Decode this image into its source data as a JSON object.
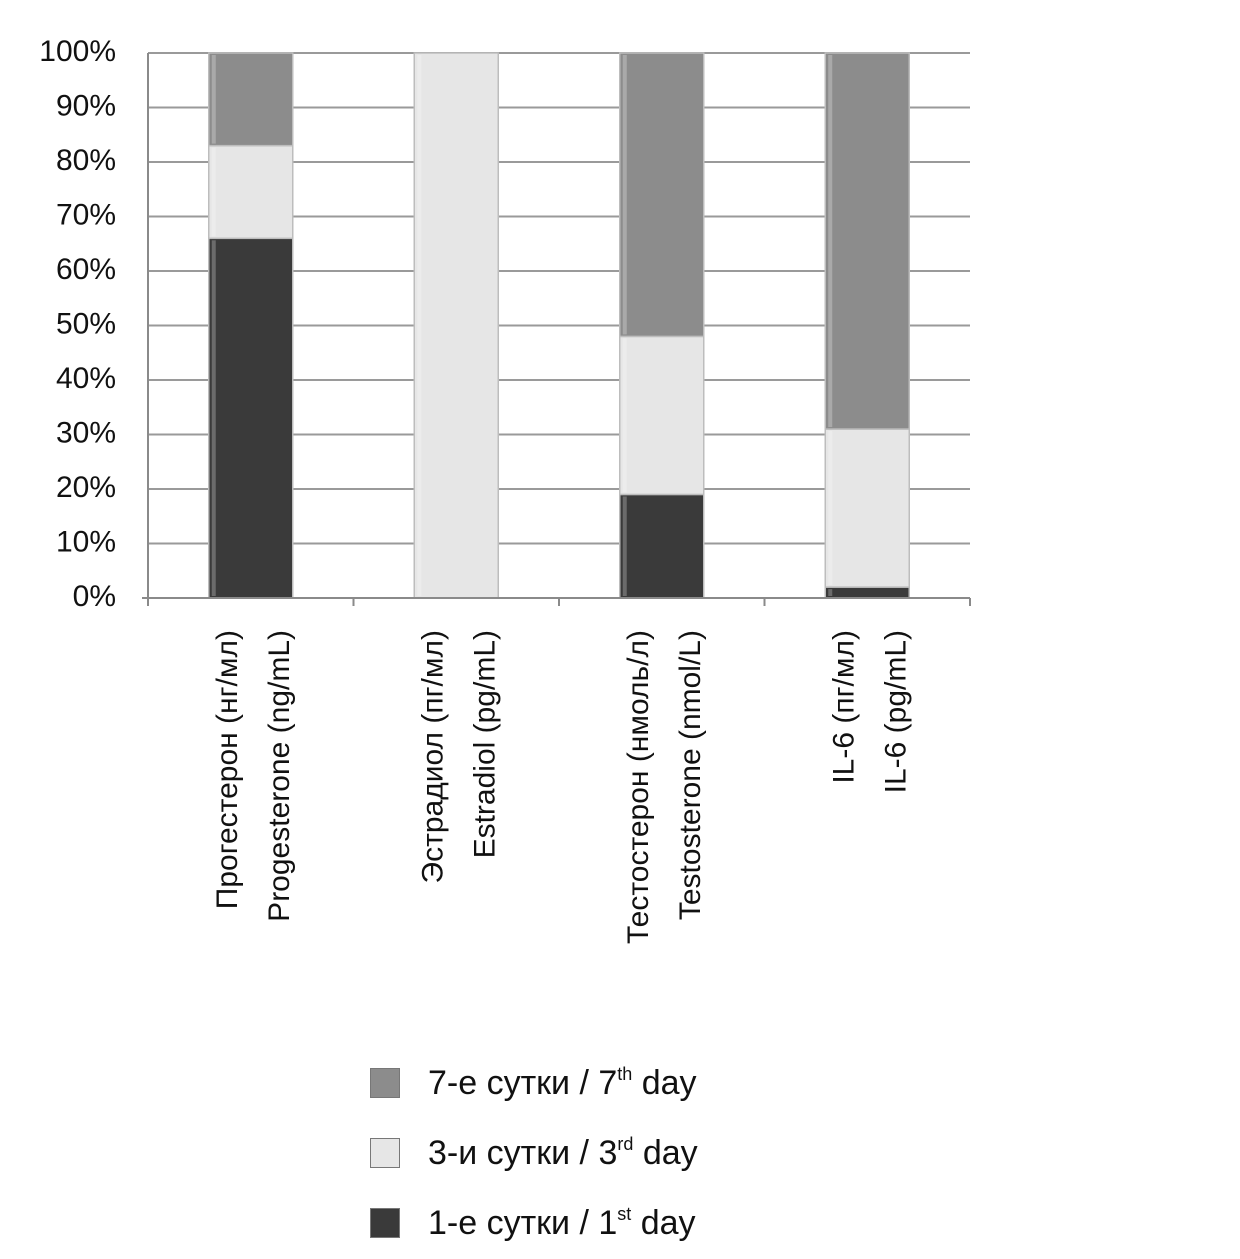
{
  "chart_data": {
    "type": "bar",
    "stacked": true,
    "percent_stacked": true,
    "ylim": [
      0,
      100
    ],
    "yticks": [
      "0%",
      "10%",
      "20%",
      "30%",
      "40%",
      "50%",
      "60%",
      "70%",
      "80%",
      "90%",
      "100%"
    ],
    "grid": true,
    "legend_position": "bottom",
    "categories": [
      [
        "Прогестерон (нг/мл)",
        "Progesterone (ng/mL)"
      ],
      [
        "Эстрадиол (пг/мл)",
        "Estradiol (pg/mL)"
      ],
      [
        "Тестостерон (нмоль/л)",
        "Testosterone (nmol/L)"
      ],
      [
        "IL-6 (пг/мл)",
        "IL-6 (pg/mL)"
      ]
    ],
    "series": [
      {
        "name": "1-е сутки / 1st day",
        "label_main": "1-е сутки / 1",
        "label_sup": "st",
        "label_tail": " day",
        "color": "#3a3a3a",
        "values": [
          66,
          0,
          19,
          2
        ]
      },
      {
        "name": "3-и сутки / 3rd day",
        "label_main": "3-и сутки / 3",
        "label_sup": "rd",
        "label_tail": " day",
        "color": "#e6e6e6",
        "values": [
          17,
          100,
          29,
          29
        ]
      },
      {
        "name": "7-е сутки / 7th day",
        "label_main": "7-е сутки / 7",
        "label_sup": "th",
        "label_tail": " day",
        "color": "#8c8c8c",
        "values": [
          17,
          0,
          52,
          69
        ]
      }
    ],
    "legend_order": [
      2,
      1,
      0
    ]
  }
}
